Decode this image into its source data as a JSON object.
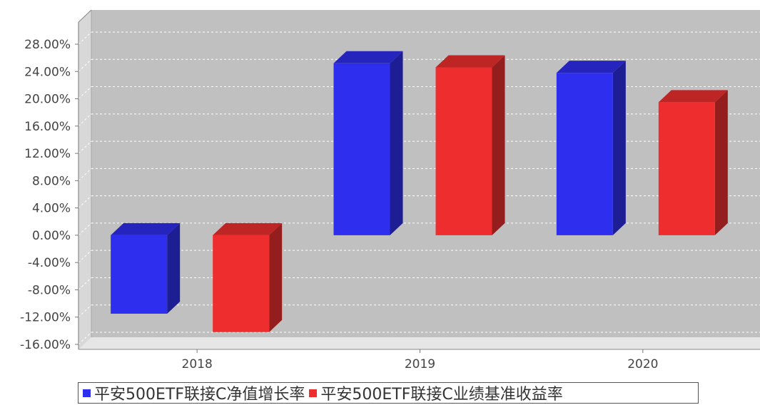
{
  "chart_data": {
    "type": "bar",
    "categories": [
      "2018",
      "2019",
      "2020"
    ],
    "series": [
      {
        "name": "平安500ETF联接C净值增长率",
        "color": "#2e2eee",
        "values": [
          -11.5,
          25.2,
          23.8
        ]
      },
      {
        "name": "平安500ETF联接C业绩基准收益率",
        "color": "#ee2e2e",
        "values": [
          -14.2,
          24.6,
          19.5
        ]
      }
    ],
    "yticks": [
      "28.00%",
      "24.00%",
      "20.00%",
      "16.00%",
      "12.00%",
      "8.00%",
      "4.00%",
      "0.00%",
      "-4.00%",
      "-8.00%",
      "-12.00%",
      "-16.00%"
    ],
    "ylim": [
      -16,
      28
    ],
    "grid": true,
    "legend_position": "bottom",
    "style": "3d"
  }
}
